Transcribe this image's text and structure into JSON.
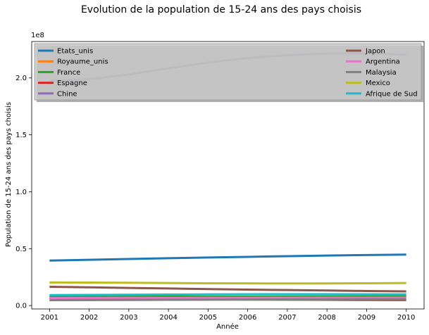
{
  "chart_data": {
    "type": "line",
    "title": "Evolution de la population de 15-24 ans des pays choisis",
    "xlabel": "Année",
    "ylabel": "Population de 15-24 ans des pays choisis",
    "y_offset_label": "1e8",
    "x": [
      2001,
      2002,
      2003,
      2004,
      2005,
      2006,
      2007,
      2008,
      2009,
      2010
    ],
    "xlim": [
      2000.55,
      2010.45
    ],
    "ylim": [
      -3000000,
      232000000
    ],
    "x_ticks": [
      2001,
      2002,
      2003,
      2004,
      2005,
      2006,
      2007,
      2008,
      2009,
      2010
    ],
    "y_ticks": [
      {
        "value": 0,
        "label": "0.0"
      },
      {
        "value": 50000000,
        "label": "0.5"
      },
      {
        "value": 100000000,
        "label": "1.0"
      },
      {
        "value": 150000000,
        "label": "1.5"
      },
      {
        "value": 200000000,
        "label": "2.0"
      }
    ],
    "grid": false,
    "legend_placement": "top",
    "series": [
      {
        "name": "Etats_unis",
        "color": "#1f77b4",
        "values": [
          39500000,
          40200000,
          40900000,
          41600000,
          42200000,
          42800000,
          43400000,
          43900000,
          44400000,
          44800000
        ]
      },
      {
        "name": "Royaume_unis",
        "color": "#ff7f0e",
        "values": [
          7300000,
          7400000,
          7500000,
          7600000,
          7700000,
          7800000,
          7900000,
          8000000,
          8100000,
          8100000
        ]
      },
      {
        "name": "France",
        "color": "#2ca02c",
        "values": [
          7700000,
          7750000,
          7800000,
          7820000,
          7840000,
          7860000,
          7870000,
          7880000,
          7880000,
          7880000
        ]
      },
      {
        "name": "Espagne",
        "color": "#d62728",
        "values": [
          6300000,
          6100000,
          5900000,
          5700000,
          5500000,
          5300000,
          5150000,
          5000000,
          4900000,
          4800000
        ]
      },
      {
        "name": "Chine",
        "color": "#9467bd",
        "values": [
          197500000,
          199000000,
          203000000,
          208500000,
          213500000,
          217500000,
          220000000,
          221500000,
          221500000,
          220500000
        ]
      },
      {
        "name": "Japon",
        "color": "#8c564b",
        "values": [
          16500000,
          16000000,
          15500000,
          15000000,
          14500000,
          14000000,
          13600000,
          13200000,
          12800000,
          12500000
        ]
      },
      {
        "name": "Argentina",
        "color": "#e377c2",
        "values": [
          6600000,
          6650000,
          6700000,
          6750000,
          6800000,
          6850000,
          6880000,
          6900000,
          6920000,
          6940000
        ]
      },
      {
        "name": "Malaysia",
        "color": "#7f7f7f",
        "values": [
          4700000,
          4800000,
          4900000,
          5000000,
          5100000,
          5200000,
          5300000,
          5400000,
          5500000,
          5600000
        ]
      },
      {
        "name": "Mexico",
        "color": "#bcbd22",
        "values": [
          20300000,
          20200000,
          20000000,
          19800000,
          19600000,
          19500000,
          19400000,
          19400000,
          19600000,
          19800000
        ]
      },
      {
        "name": "Afrique de Sud",
        "color": "#17becf",
        "values": [
          9200000,
          9350000,
          9500000,
          9650000,
          9800000,
          9900000,
          10000000,
          10000000,
          9900000,
          9800000
        ]
      }
    ]
  }
}
